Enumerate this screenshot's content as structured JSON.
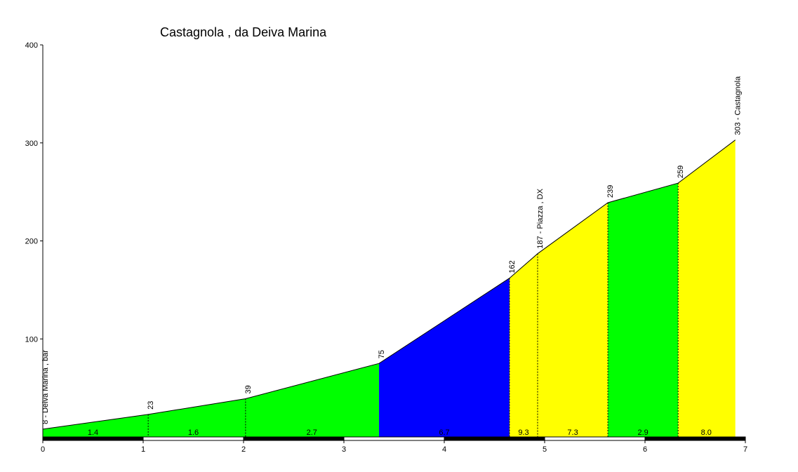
{
  "chart_data": {
    "type": "area",
    "title": "Castagnola , da Deiva Marina",
    "xlabel": "",
    "ylabel": "",
    "xlim": [
      0,
      7
    ],
    "ylim": [
      0,
      400
    ],
    "x_ticks": [
      "0",
      "1",
      "2",
      "3",
      "4",
      "5",
      "6",
      "7"
    ],
    "y_ticks": [
      "100",
      "200",
      "300",
      "400"
    ],
    "grid": false,
    "profile": [
      {
        "x": 0.0,
        "y": 8
      },
      {
        "x": 1.05,
        "y": 23
      },
      {
        "x": 2.02,
        "y": 39
      },
      {
        "x": 3.35,
        "y": 75
      },
      {
        "x": 4.65,
        "y": 162
      },
      {
        "x": 4.93,
        "y": 187
      },
      {
        "x": 5.63,
        "y": 239
      },
      {
        "x": 6.33,
        "y": 259
      },
      {
        "x": 6.9,
        "y": 303
      }
    ],
    "segments": [
      {
        "from": 0.0,
        "to": 3.35,
        "color": "#00ff00"
      },
      {
        "from": 3.35,
        "to": 4.65,
        "color": "#0000ff"
      },
      {
        "from": 4.65,
        "to": 5.63,
        "color": "#ffff00"
      },
      {
        "from": 5.63,
        "to": 6.33,
        "color": "#00ff00"
      },
      {
        "from": 6.33,
        "to": 6.9,
        "color": "#ffff00"
      }
    ],
    "gradients": [
      {
        "x": 0.5,
        "label": "1.4"
      },
      {
        "x": 1.5,
        "label": "1.6"
      },
      {
        "x": 2.68,
        "label": "2.7"
      },
      {
        "x": 4.0,
        "label": "6.7"
      },
      {
        "x": 4.79,
        "label": "9.3"
      },
      {
        "x": 5.28,
        "label": "7.3"
      },
      {
        "x": 5.98,
        "label": "2.9"
      },
      {
        "x": 6.61,
        "label": "8.0"
      }
    ],
    "point_labels": [
      {
        "x": 0.0,
        "y": 8,
        "label": "8 - Deiva Marina , bar"
      },
      {
        "x": 1.05,
        "y": 23,
        "label": "23"
      },
      {
        "x": 2.02,
        "y": 39,
        "label": "39"
      },
      {
        "x": 3.35,
        "y": 75,
        "label": "75"
      },
      {
        "x": 4.65,
        "y": 162,
        "label": "162"
      },
      {
        "x": 4.93,
        "y": 187,
        "label": "187 - Piazza , DX"
      },
      {
        "x": 5.63,
        "y": 239,
        "label": "239"
      },
      {
        "x": 6.33,
        "y": 259,
        "label": "259"
      },
      {
        "x": 6.9,
        "y": 303,
        "label": "303 - Castagnola"
      }
    ],
    "dashed_markers": [
      1.05,
      2.02,
      4.65,
      4.93,
      5.63,
      6.33
    ],
    "colors": {
      "line": "#000000",
      "axis": "#000000"
    }
  }
}
